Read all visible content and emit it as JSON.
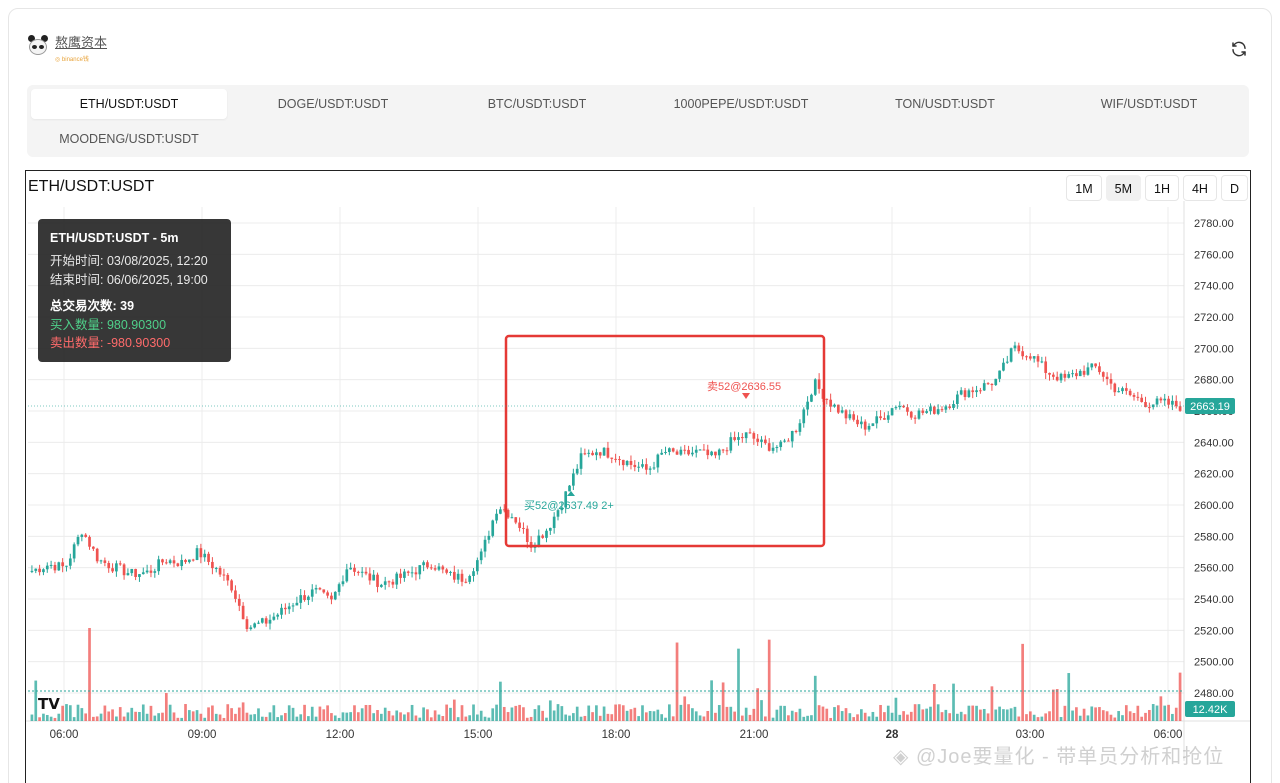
{
  "brand": {
    "name": "熬鹰资本",
    "sub": "◎ binance钱"
  },
  "tabs": [
    {
      "label": "ETH/USDT:USDT",
      "active": true
    },
    {
      "label": "DOGE/USDT:USDT",
      "active": false
    },
    {
      "label": "BTC/USDT:USDT",
      "active": false
    },
    {
      "label": "1000PEPE/USDT:USDT",
      "active": false
    },
    {
      "label": "TON/USDT:USDT",
      "active": false
    },
    {
      "label": "WIF/USDT:USDT",
      "active": false
    },
    {
      "label": "MOODENG/USDT:USDT",
      "active": false
    }
  ],
  "chart": {
    "title": "ETH/USDT:USDT",
    "timeframes": [
      {
        "label": "1M",
        "active": false
      },
      {
        "label": "5M",
        "active": true
      },
      {
        "label": "1H",
        "active": false
      },
      {
        "label": "4H",
        "active": false
      },
      {
        "label": "D",
        "active": false
      }
    ],
    "logo_text": "TV"
  },
  "tooltip": {
    "title": "ETH/USDT:USDT - 5m",
    "start": "开始时间: 03/08/2025, 12:20",
    "end": "结束时间: 06/06/2025, 19:00",
    "trades": "总交易次数: 39",
    "buy": "买入数量: 980.90300",
    "sell": "卖出数量: -980.90300"
  },
  "watermark": "◈ @Joe要量化 - 带单员分析和抢位",
  "colors": {
    "up": "#26a69a",
    "down": "#ef5350",
    "highlight": "#e53935",
    "price_tag": "#26a69a"
  },
  "chart_data": {
    "type": "candlestick",
    "x_ticks": [
      "06:00",
      "09:00",
      "12:00",
      "15:00",
      "18:00",
      "21:00",
      "28",
      "03:00",
      "06:00"
    ],
    "y_ticks": [
      "2780.00",
      "2760.00",
      "2740.00",
      "2720.00",
      "2700.00",
      "2680.00",
      "2660.00",
      "2640.00",
      "2620.00",
      "2600.00",
      "2580.00",
      "2560.00",
      "2540.00",
      "2520.00",
      "2500.00",
      "2480.00"
    ],
    "ylim": [
      2470,
      2790
    ],
    "last_price": "2663.19",
    "last_volume": "12.42K",
    "price_path": [
      2558,
      2562,
      2560,
      2584,
      2565,
      2560,
      2556,
      2557,
      2565,
      2563,
      2570,
      2560,
      2548,
      2522,
      2525,
      2532,
      2540,
      2545,
      2538,
      2562,
      2555,
      2550,
      2553,
      2558,
      2563,
      2555,
      2553,
      2568,
      2600,
      2592,
      2575,
      2585,
      2605,
      2630,
      2635,
      2632,
      2626,
      2622,
      2634,
      2632,
      2634,
      2630,
      2640,
      2645,
      2638,
      2637,
      2650,
      2678,
      2665,
      2656,
      2650,
      2655,
      2665,
      2658,
      2660,
      2664,
      2672,
      2675,
      2680,
      2700,
      2696,
      2685,
      2680,
      2685,
      2688,
      2675,
      2670,
      2665,
      2665,
      2663
    ],
    "markers": [
      {
        "label": "买52@2637.49 2+",
        "side": "buy"
      },
      {
        "label": "卖52@2636.55",
        "side": "sell"
      }
    ]
  }
}
